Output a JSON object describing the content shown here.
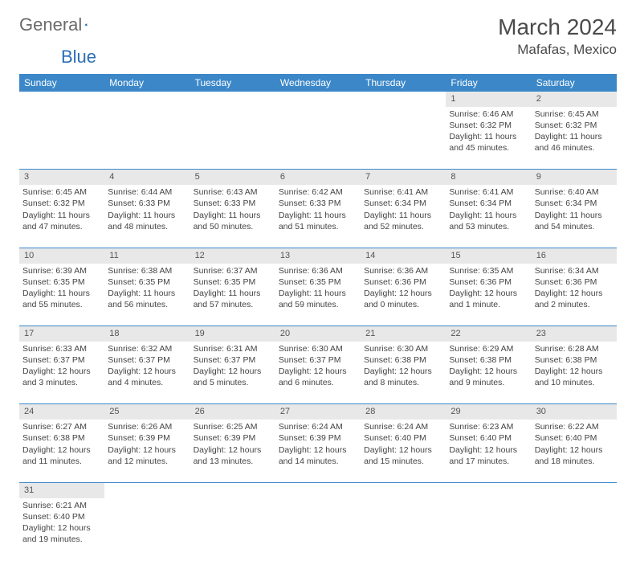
{
  "logo": {
    "text1": "General",
    "text2": "Blue"
  },
  "title": "March 2024",
  "location": "Mafafas, Mexico",
  "colors": {
    "header_bg": "#3b87c8",
    "header_fg": "#ffffff",
    "daynum_bg": "#e8e8e8",
    "border": "#3b87c8",
    "logo_general": "#6a6a6a",
    "logo_blue": "#2a6fb5"
  },
  "day_headers": [
    "Sunday",
    "Monday",
    "Tuesday",
    "Wednesday",
    "Thursday",
    "Friday",
    "Saturday"
  ],
  "weeks": [
    [
      {
        "num": "",
        "sunrise": "",
        "sunset": "",
        "daylight": ""
      },
      {
        "num": "",
        "sunrise": "",
        "sunset": "",
        "daylight": ""
      },
      {
        "num": "",
        "sunrise": "",
        "sunset": "",
        "daylight": ""
      },
      {
        "num": "",
        "sunrise": "",
        "sunset": "",
        "daylight": ""
      },
      {
        "num": "",
        "sunrise": "",
        "sunset": "",
        "daylight": ""
      },
      {
        "num": "1",
        "sunrise": "Sunrise: 6:46 AM",
        "sunset": "Sunset: 6:32 PM",
        "daylight": "Daylight: 11 hours and 45 minutes."
      },
      {
        "num": "2",
        "sunrise": "Sunrise: 6:45 AM",
        "sunset": "Sunset: 6:32 PM",
        "daylight": "Daylight: 11 hours and 46 minutes."
      }
    ],
    [
      {
        "num": "3",
        "sunrise": "Sunrise: 6:45 AM",
        "sunset": "Sunset: 6:32 PM",
        "daylight": "Daylight: 11 hours and 47 minutes."
      },
      {
        "num": "4",
        "sunrise": "Sunrise: 6:44 AM",
        "sunset": "Sunset: 6:33 PM",
        "daylight": "Daylight: 11 hours and 48 minutes."
      },
      {
        "num": "5",
        "sunrise": "Sunrise: 6:43 AM",
        "sunset": "Sunset: 6:33 PM",
        "daylight": "Daylight: 11 hours and 50 minutes."
      },
      {
        "num": "6",
        "sunrise": "Sunrise: 6:42 AM",
        "sunset": "Sunset: 6:33 PM",
        "daylight": "Daylight: 11 hours and 51 minutes."
      },
      {
        "num": "7",
        "sunrise": "Sunrise: 6:41 AM",
        "sunset": "Sunset: 6:34 PM",
        "daylight": "Daylight: 11 hours and 52 minutes."
      },
      {
        "num": "8",
        "sunrise": "Sunrise: 6:41 AM",
        "sunset": "Sunset: 6:34 PM",
        "daylight": "Daylight: 11 hours and 53 minutes."
      },
      {
        "num": "9",
        "sunrise": "Sunrise: 6:40 AM",
        "sunset": "Sunset: 6:34 PM",
        "daylight": "Daylight: 11 hours and 54 minutes."
      }
    ],
    [
      {
        "num": "10",
        "sunrise": "Sunrise: 6:39 AM",
        "sunset": "Sunset: 6:35 PM",
        "daylight": "Daylight: 11 hours and 55 minutes."
      },
      {
        "num": "11",
        "sunrise": "Sunrise: 6:38 AM",
        "sunset": "Sunset: 6:35 PM",
        "daylight": "Daylight: 11 hours and 56 minutes."
      },
      {
        "num": "12",
        "sunrise": "Sunrise: 6:37 AM",
        "sunset": "Sunset: 6:35 PM",
        "daylight": "Daylight: 11 hours and 57 minutes."
      },
      {
        "num": "13",
        "sunrise": "Sunrise: 6:36 AM",
        "sunset": "Sunset: 6:35 PM",
        "daylight": "Daylight: 11 hours and 59 minutes."
      },
      {
        "num": "14",
        "sunrise": "Sunrise: 6:36 AM",
        "sunset": "Sunset: 6:36 PM",
        "daylight": "Daylight: 12 hours and 0 minutes."
      },
      {
        "num": "15",
        "sunrise": "Sunrise: 6:35 AM",
        "sunset": "Sunset: 6:36 PM",
        "daylight": "Daylight: 12 hours and 1 minute."
      },
      {
        "num": "16",
        "sunrise": "Sunrise: 6:34 AM",
        "sunset": "Sunset: 6:36 PM",
        "daylight": "Daylight: 12 hours and 2 minutes."
      }
    ],
    [
      {
        "num": "17",
        "sunrise": "Sunrise: 6:33 AM",
        "sunset": "Sunset: 6:37 PM",
        "daylight": "Daylight: 12 hours and 3 minutes."
      },
      {
        "num": "18",
        "sunrise": "Sunrise: 6:32 AM",
        "sunset": "Sunset: 6:37 PM",
        "daylight": "Daylight: 12 hours and 4 minutes."
      },
      {
        "num": "19",
        "sunrise": "Sunrise: 6:31 AM",
        "sunset": "Sunset: 6:37 PM",
        "daylight": "Daylight: 12 hours and 5 minutes."
      },
      {
        "num": "20",
        "sunrise": "Sunrise: 6:30 AM",
        "sunset": "Sunset: 6:37 PM",
        "daylight": "Daylight: 12 hours and 6 minutes."
      },
      {
        "num": "21",
        "sunrise": "Sunrise: 6:30 AM",
        "sunset": "Sunset: 6:38 PM",
        "daylight": "Daylight: 12 hours and 8 minutes."
      },
      {
        "num": "22",
        "sunrise": "Sunrise: 6:29 AM",
        "sunset": "Sunset: 6:38 PM",
        "daylight": "Daylight: 12 hours and 9 minutes."
      },
      {
        "num": "23",
        "sunrise": "Sunrise: 6:28 AM",
        "sunset": "Sunset: 6:38 PM",
        "daylight": "Daylight: 12 hours and 10 minutes."
      }
    ],
    [
      {
        "num": "24",
        "sunrise": "Sunrise: 6:27 AM",
        "sunset": "Sunset: 6:38 PM",
        "daylight": "Daylight: 12 hours and 11 minutes."
      },
      {
        "num": "25",
        "sunrise": "Sunrise: 6:26 AM",
        "sunset": "Sunset: 6:39 PM",
        "daylight": "Daylight: 12 hours and 12 minutes."
      },
      {
        "num": "26",
        "sunrise": "Sunrise: 6:25 AM",
        "sunset": "Sunset: 6:39 PM",
        "daylight": "Daylight: 12 hours and 13 minutes."
      },
      {
        "num": "27",
        "sunrise": "Sunrise: 6:24 AM",
        "sunset": "Sunset: 6:39 PM",
        "daylight": "Daylight: 12 hours and 14 minutes."
      },
      {
        "num": "28",
        "sunrise": "Sunrise: 6:24 AM",
        "sunset": "Sunset: 6:40 PM",
        "daylight": "Daylight: 12 hours and 15 minutes."
      },
      {
        "num": "29",
        "sunrise": "Sunrise: 6:23 AM",
        "sunset": "Sunset: 6:40 PM",
        "daylight": "Daylight: 12 hours and 17 minutes."
      },
      {
        "num": "30",
        "sunrise": "Sunrise: 6:22 AM",
        "sunset": "Sunset: 6:40 PM",
        "daylight": "Daylight: 12 hours and 18 minutes."
      }
    ],
    [
      {
        "num": "31",
        "sunrise": "Sunrise: 6:21 AM",
        "sunset": "Sunset: 6:40 PM",
        "daylight": "Daylight: 12 hours and 19 minutes."
      },
      {
        "num": "",
        "sunrise": "",
        "sunset": "",
        "daylight": ""
      },
      {
        "num": "",
        "sunrise": "",
        "sunset": "",
        "daylight": ""
      },
      {
        "num": "",
        "sunrise": "",
        "sunset": "",
        "daylight": ""
      },
      {
        "num": "",
        "sunrise": "",
        "sunset": "",
        "daylight": ""
      },
      {
        "num": "",
        "sunrise": "",
        "sunset": "",
        "daylight": ""
      },
      {
        "num": "",
        "sunrise": "",
        "sunset": "",
        "daylight": ""
      }
    ]
  ]
}
